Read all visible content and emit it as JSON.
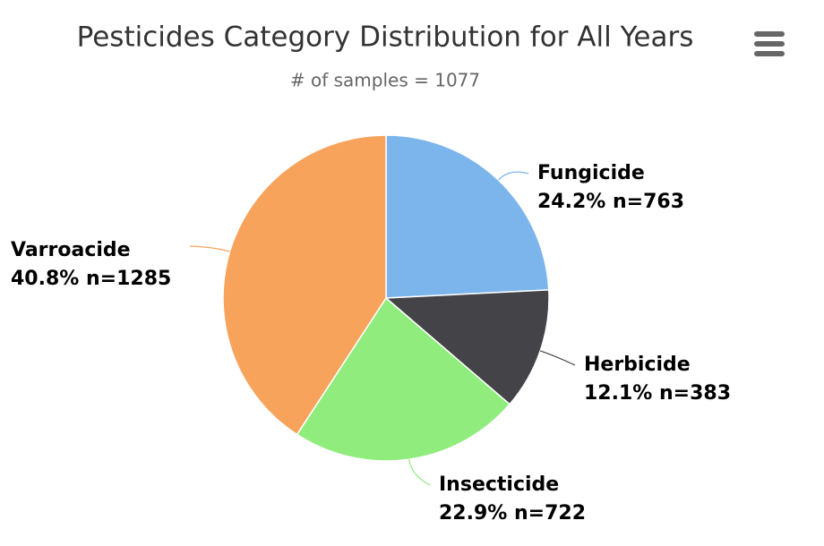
{
  "chart_data": {
    "type": "pie",
    "title": "Pesticides Category Distribution for All Years",
    "subtitle": "# of samples = 1077",
    "categories": [
      "Fungicide",
      "Herbicide",
      "Insecticide",
      "Varroacide"
    ],
    "values": [
      24.2,
      12.1,
      22.9,
      40.8
    ],
    "value_labels": [
      "24.2% n=763",
      "12.1% n=383",
      "22.9% n=722",
      "40.8% n=1285"
    ],
    "colors": [
      "#7cb5ec",
      "#434348",
      "#90ed7d",
      "#f7a35c"
    ]
  }
}
